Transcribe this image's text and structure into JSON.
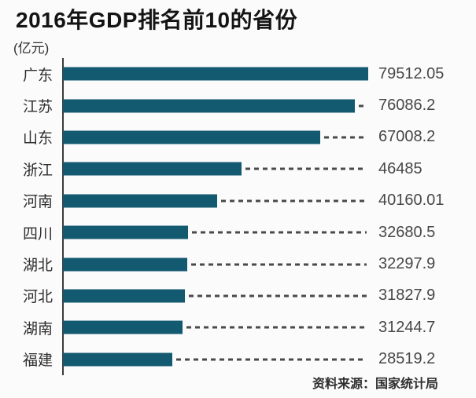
{
  "header": {
    "title": "2016年GDP排名前10的省份",
    "unit_label": "(亿元)"
  },
  "footer": {
    "source": "资料来源：国家统计局"
  },
  "colors": {
    "bar": "#135a70",
    "axis": "#3b3b3b",
    "dash": "#4a4a4a",
    "title_text": "#141414",
    "label_text": "#2f2f2f",
    "value_text": "#474747",
    "background": "#fbfbfb"
  },
  "chart_data": {
    "type": "bar",
    "orientation": "horizontal",
    "title": "2016年GDP排名前10的省份",
    "unit": "亿元",
    "xlabel": "",
    "ylabel": "",
    "xlim": [
      0,
      79512.05
    ],
    "grid": false,
    "legend": false,
    "categories": [
      "广东",
      "江苏",
      "山东",
      "浙江",
      "河南",
      "四川",
      "湖北",
      "河北",
      "湖南",
      "福建"
    ],
    "values": [
      79512.05,
      76086.2,
      67008.2,
      46485,
      40160.01,
      32680.5,
      32297.9,
      31827.9,
      31244.7,
      28519.2
    ],
    "value_labels": [
      "79512.05",
      "76086.2",
      "67008.2",
      "46485",
      "40160.01",
      "32680.5",
      "32297.9",
      "31827.9",
      "31244.7",
      "28519.2"
    ],
    "source": "资料来源：国家统计局"
  }
}
